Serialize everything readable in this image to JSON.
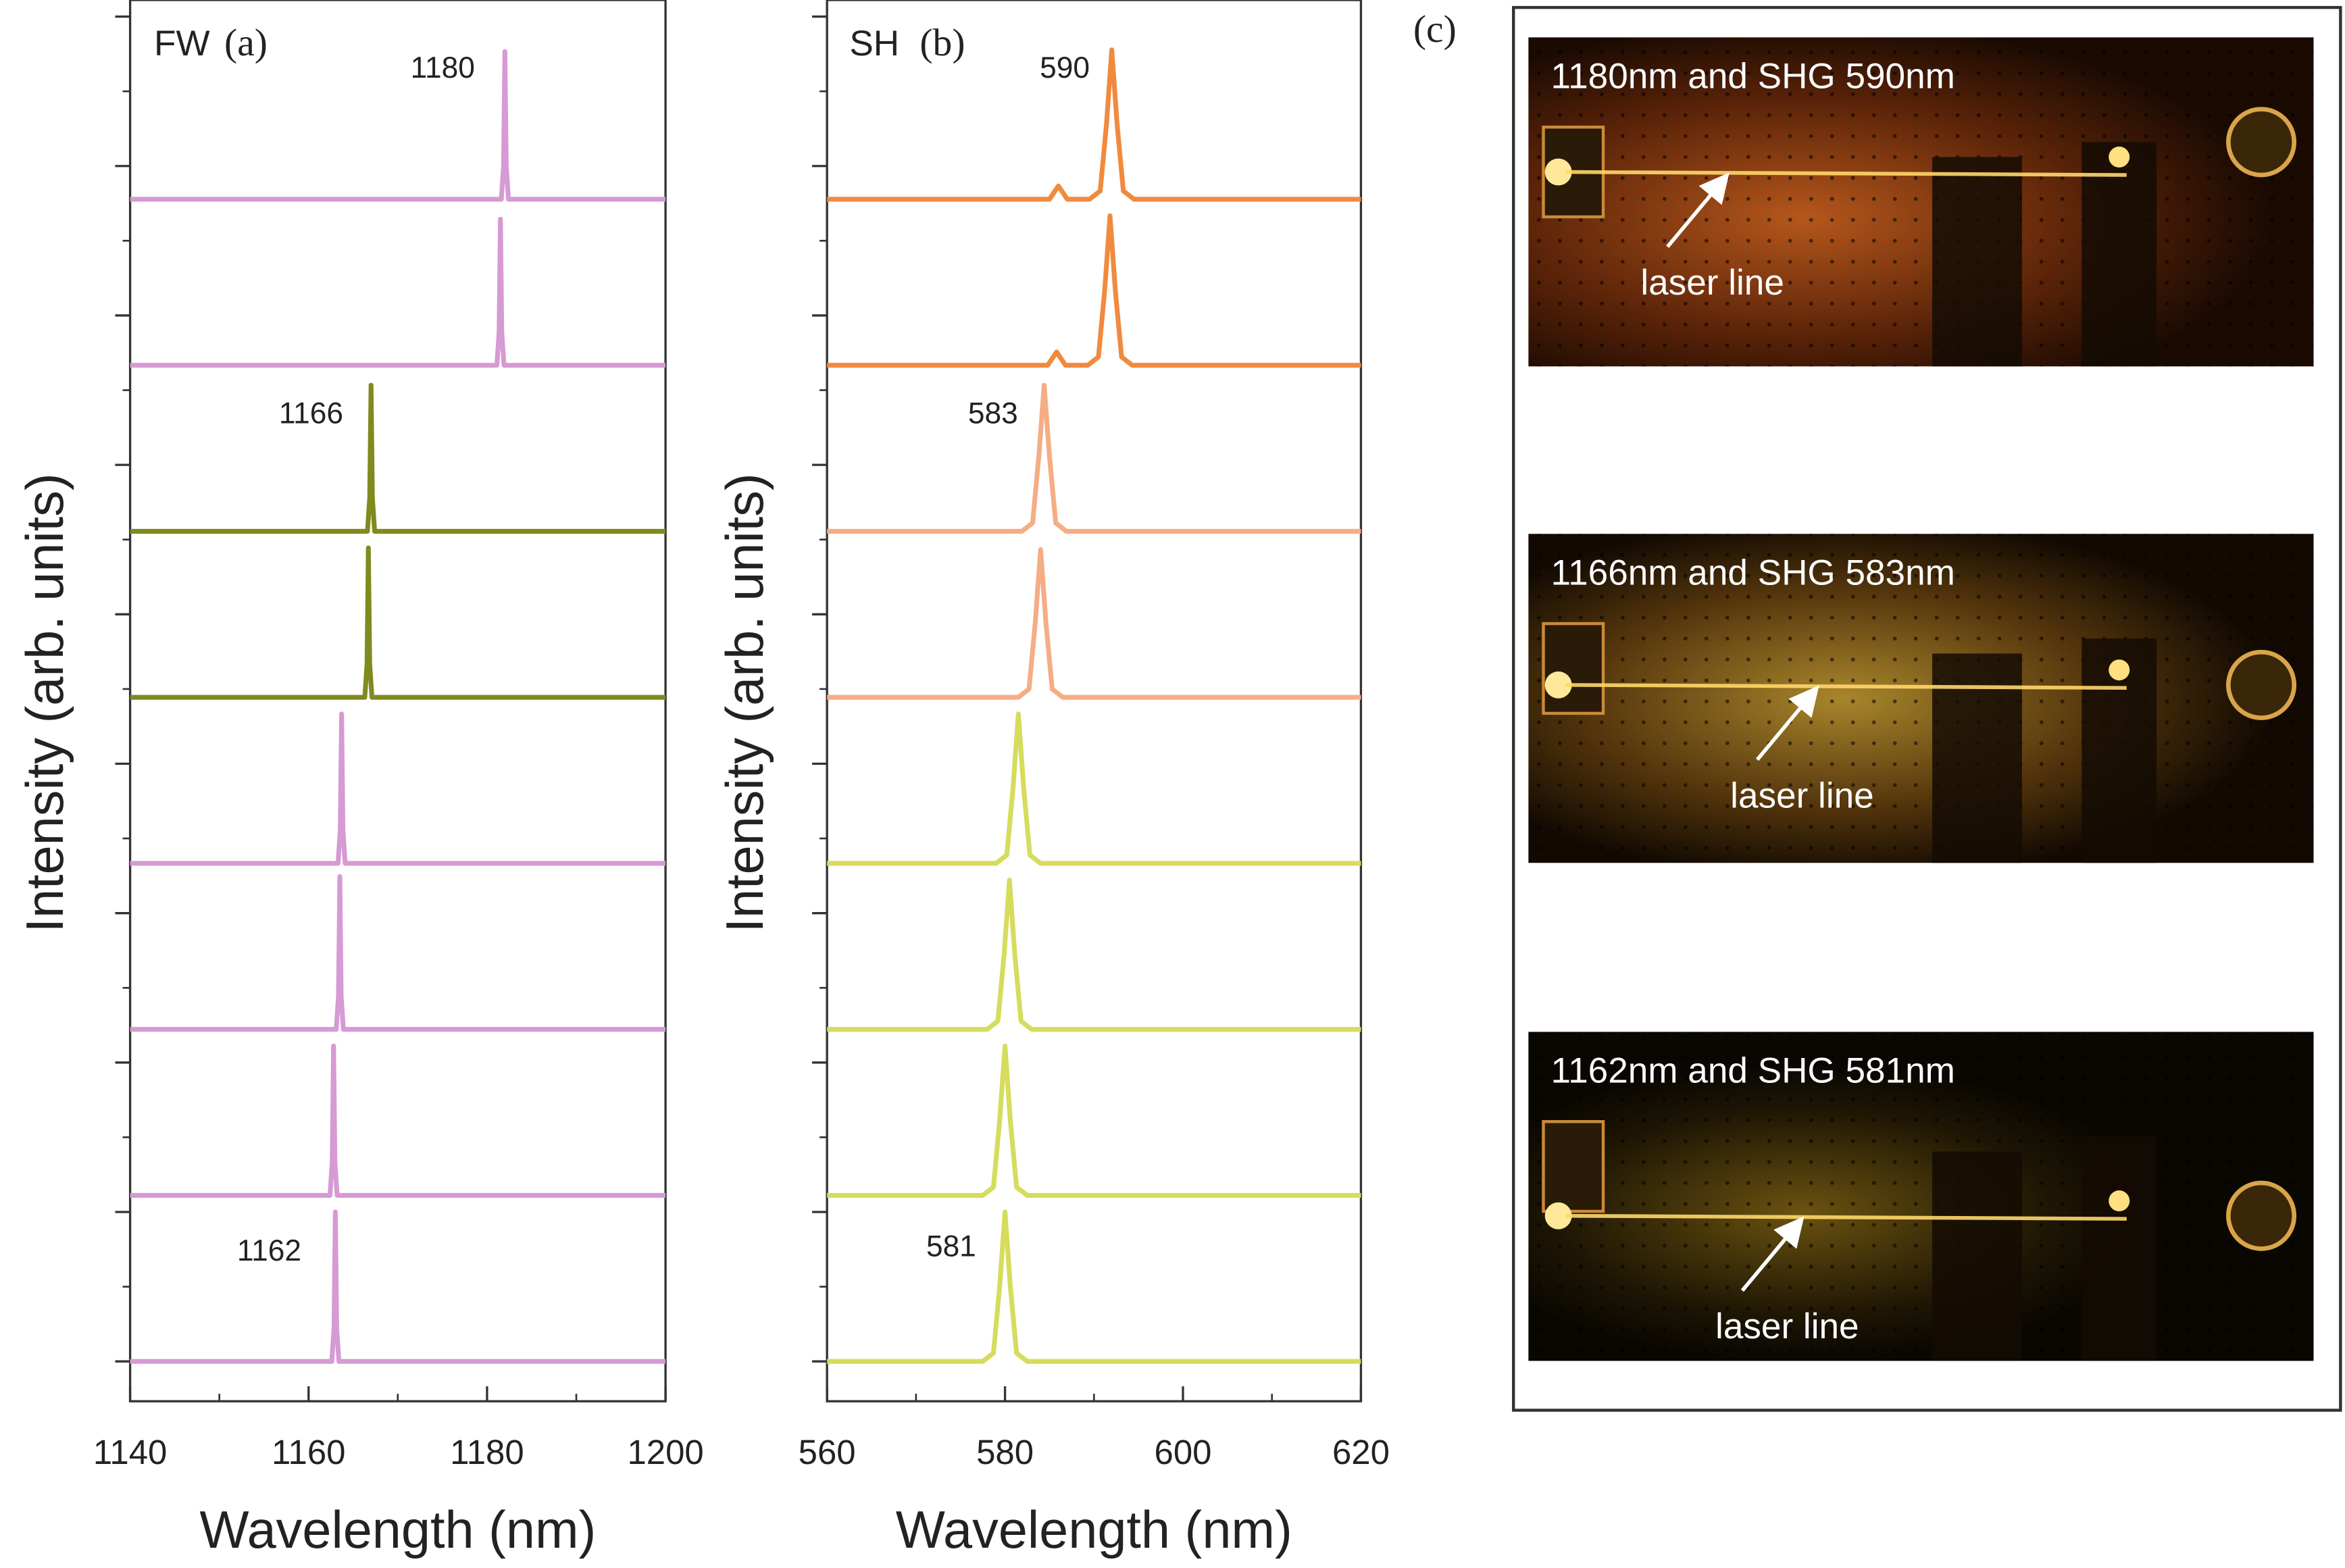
{
  "chart_data": [
    {
      "type": "line",
      "panel_label": "(a)",
      "tag": "FW",
      "xlabel": "Wavelength (nm)",
      "ylabel": "Intensity (arb. units)",
      "xlim": [
        1140,
        1200
      ],
      "xticks": [
        1140,
        1160,
        1180,
        1200
      ],
      "ylim": [
        -0.24,
        8.2
      ],
      "yticks": [
        0,
        0.9,
        1.8,
        2.7,
        3.6,
        4.5,
        5.4,
        6.3,
        7.2,
        8.1
      ],
      "annotations": [
        "1180",
        "1166",
        "1162"
      ],
      "series": [
        {
          "color": "#d69ad4",
          "x": [
            1140,
            1181.6,
            1181.85,
            1182,
            1182.15,
            1182.4,
            1200
          ],
          "values": [
            7,
            7,
            7.2,
            7.89,
            7.2,
            7,
            7
          ]
        },
        {
          "color": "#d69ad4",
          "x": [
            1140,
            1181.1,
            1181.35,
            1181.5,
            1181.65,
            1181.9,
            1200
          ],
          "values": [
            6,
            6,
            6.2,
            6.88,
            6.2,
            6,
            6
          ]
        },
        {
          "color": "#7f8a1f",
          "x": [
            1140,
            1166.6,
            1166.85,
            1167,
            1167.15,
            1167.4,
            1200
          ],
          "values": [
            5,
            5,
            5.2,
            5.88,
            5.2,
            5,
            5
          ]
        },
        {
          "color": "#7f8a1f",
          "x": [
            1140,
            1166.3,
            1166.55,
            1166.7,
            1166.85,
            1167.1,
            1200
          ],
          "values": [
            4,
            4,
            4.2,
            4.9,
            4.2,
            4,
            4
          ]
        },
        {
          "color": "#d69ad4",
          "x": [
            1140,
            1163.3,
            1163.55,
            1163.7,
            1163.85,
            1164.1,
            1200
          ],
          "values": [
            3,
            3,
            3.2,
            3.9,
            3.2,
            3,
            3
          ]
        },
        {
          "color": "#d69ad4",
          "x": [
            1140,
            1163.1,
            1163.35,
            1163.5,
            1163.65,
            1163.9,
            1200
          ],
          "values": [
            2,
            2,
            2.2,
            2.92,
            2.2,
            2,
            2
          ]
        },
        {
          "color": "#d69ad4",
          "x": [
            1140,
            1162.4,
            1162.65,
            1162.8,
            1162.95,
            1163.2,
            1200
          ],
          "values": [
            1,
            1,
            1.2,
            1.9,
            1.2,
            1,
            1
          ]
        },
        {
          "color": "#d69ad4",
          "x": [
            1140,
            1162.6,
            1162.85,
            1163,
            1163.15,
            1163.4,
            1200
          ],
          "values": [
            0,
            0,
            0.2,
            0.9,
            0.2,
            0,
            0
          ]
        }
      ]
    },
    {
      "type": "line",
      "panel_label": "(b)",
      "tag": "SH",
      "xlabel": "Wavelength (nm)",
      "ylabel": "Intensity (arb. units)",
      "xlim": [
        560,
        620
      ],
      "xticks": [
        560,
        580,
        600,
        620
      ],
      "ylim": [
        -0.24,
        8.2
      ],
      "yticks": [
        0,
        0.9,
        1.8,
        2.7,
        3.6,
        4.5,
        5.4,
        6.3,
        7.2,
        8.1
      ],
      "annotations": [
        "590",
        "583",
        "581"
      ],
      "series": [
        {
          "color": "#f08a3e",
          "x": [
            560,
            585,
            586,
            587,
            589.5,
            590.7,
            591.4,
            592,
            592.6,
            593.3,
            594.5,
            620
          ],
          "values": [
            7,
            7,
            7.08,
            7,
            7,
            7.05,
            7.45,
            7.9,
            7.45,
            7.05,
            7,
            7
          ]
        },
        {
          "color": "#f08a3e",
          "x": [
            560,
            584.8,
            585.8,
            586.8,
            589.3,
            590.5,
            591.2,
            591.8,
            592.4,
            593.1,
            594.3,
            620
          ],
          "values": [
            6,
            6,
            6.08,
            6,
            6,
            6.05,
            6.45,
            6.9,
            6.45,
            6.05,
            6,
            6
          ]
        },
        {
          "color": "#f5ad84",
          "x": [
            560,
            581.9,
            583.1,
            583.8,
            584.4,
            585,
            585.7,
            586.9,
            620
          ],
          "values": [
            5,
            5,
            5.05,
            5.45,
            5.88,
            5.45,
            5.05,
            5,
            5
          ]
        },
        {
          "color": "#f5ad84",
          "x": [
            560,
            581.5,
            582.7,
            583.4,
            584,
            584.6,
            585.3,
            586.5,
            620
          ],
          "values": [
            4,
            4,
            4.05,
            4.45,
            4.89,
            4.45,
            4.05,
            4,
            4
          ]
        },
        {
          "color": "#d6dc5c",
          "x": [
            560,
            579,
            580.2,
            580.9,
            581.5,
            582.1,
            582.8,
            584,
            620
          ],
          "values": [
            3,
            3,
            3.05,
            3.45,
            3.9,
            3.45,
            3.05,
            3,
            3
          ]
        },
        {
          "color": "#d6dc5c",
          "x": [
            560,
            578,
            579.2,
            579.9,
            580.5,
            581.1,
            581.8,
            583,
            620
          ],
          "values": [
            2,
            2,
            2.05,
            2.45,
            2.9,
            2.45,
            2.05,
            2,
            2
          ]
        },
        {
          "color": "#d6dc5c",
          "x": [
            560,
            577.5,
            578.7,
            579.4,
            580,
            580.6,
            581.3,
            582.5,
            620
          ],
          "values": [
            1,
            1,
            1.05,
            1.45,
            1.9,
            1.45,
            1.05,
            1,
            1
          ]
        },
        {
          "color": "#d6dc5c",
          "x": [
            560,
            577.5,
            578.7,
            579.4,
            580,
            580.6,
            581.3,
            582.5,
            620
          ],
          "values": [
            0,
            0,
            0.05,
            0.45,
            0.9,
            0.45,
            0.05,
            0,
            0
          ]
        }
      ]
    }
  ],
  "photo_panel": {
    "label": "(c)",
    "photos": [
      {
        "caption": "1180nm and SHG 590nm",
        "annotation": "laser line"
      },
      {
        "caption": "1166nm and SHG 583nm",
        "annotation": "laser line"
      },
      {
        "caption": "1162nm and SHG 581nm",
        "annotation": "laser line"
      }
    ]
  }
}
